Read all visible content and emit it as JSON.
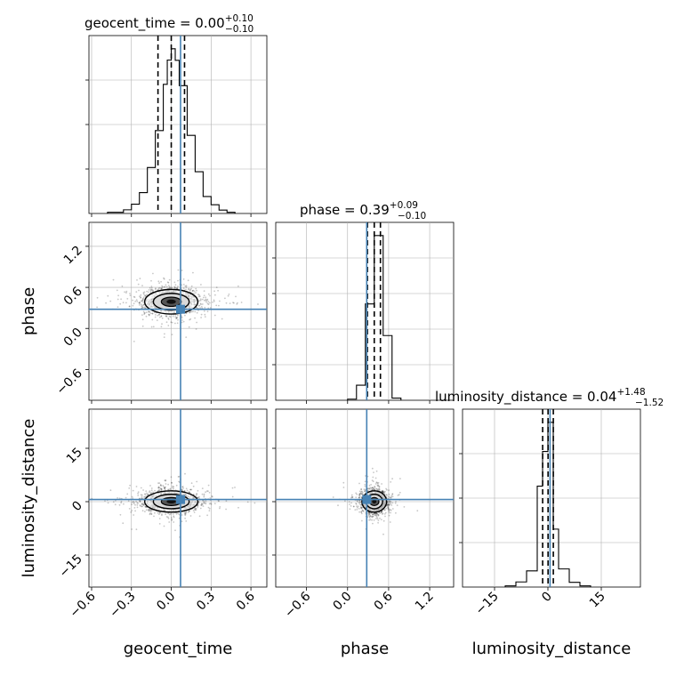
{
  "chart_data": {
    "type": "corner",
    "parameters": [
      "geocent_time",
      "phase",
      "luminosity_distance"
    ],
    "injection": {
      "geocent_time": 0.07,
      "phase": 0.28,
      "luminosity_distance": 0.6
    },
    "colors": {
      "injection": "#4682b4",
      "hist": "#000000",
      "grid": "#b0b0b0"
    },
    "panels": {
      "geocent_time": {
        "title_prefix": "geocent_time = 0.00",
        "title_plus": "+0.10",
        "title_minus": "−0.10",
        "quantiles": [
          -0.1,
          0.0,
          0.1
        ],
        "range": [
          -0.62,
          0.72
        ],
        "hist_bins": [
          {
            "x0": -0.48,
            "x1": -0.36,
            "value": 0.4
          },
          {
            "x0": -0.36,
            "x1": -0.3,
            "value": 1.3
          },
          {
            "x0": -0.3,
            "x1": -0.24,
            "value": 3.3
          },
          {
            "x0": -0.24,
            "x1": -0.18,
            "value": 7.4
          },
          {
            "x0": -0.18,
            "x1": -0.12,
            "value": 16.3
          },
          {
            "x0": -0.12,
            "x1": -0.06,
            "value": 29.4
          },
          {
            "x0": -0.06,
            "x1": -0.03,
            "value": 45.8
          },
          {
            "x0": -0.03,
            "x1": 0.0,
            "value": 54.4
          },
          {
            "x0": 0.0,
            "x1": 0.03,
            "value": 58.4
          },
          {
            "x0": 0.03,
            "x1": 0.06,
            "value": 54.3
          },
          {
            "x0": 0.06,
            "x1": 0.12,
            "value": 45.3
          },
          {
            "x0": 0.12,
            "x1": 0.18,
            "value": 27.7
          },
          {
            "x0": 0.18,
            "x1": 0.24,
            "value": 14.8
          },
          {
            "x0": 0.24,
            "x1": 0.3,
            "value": 6.0
          },
          {
            "x0": 0.3,
            "x1": 0.36,
            "value": 3.1
          },
          {
            "x0": 0.36,
            "x1": 0.42,
            "value": 1.2
          },
          {
            "x0": 0.42,
            "x1": 0.48,
            "value": 0.4
          }
        ]
      },
      "phase": {
        "title_prefix": "phase = 0.39",
        "title_plus": "+0.09",
        "title_minus": "−0.10",
        "quantiles": [
          0.29,
          0.39,
          0.48
        ],
        "range": [
          -1.05,
          1.55
        ],
        "hist_bins": [
          {
            "x0": 0.0,
            "x1": 0.13,
            "value": 0.3
          },
          {
            "x0": 0.13,
            "x1": 0.26,
            "value": 4.1
          },
          {
            "x0": 0.26,
            "x1": 0.39,
            "value": 26.2
          },
          {
            "x0": 0.39,
            "x1": 0.52,
            "value": 44.8
          },
          {
            "x0": 0.52,
            "x1": 0.65,
            "value": 17.6
          },
          {
            "x0": 0.65,
            "x1": 0.78,
            "value": 0.6
          }
        ]
      },
      "luminosity_distance": {
        "title_prefix": "luminosity_distance = 0.04",
        "title_plus": "+1.48",
        "title_minus": "−1.52",
        "quantiles": [
          -1.48,
          0.04,
          1.52
        ],
        "range": [
          -24.0,
          26.0
        ],
        "hist_bins": [
          {
            "x0": -12,
            "x1": -9,
            "value": 0.3
          },
          {
            "x0": -9,
            "x1": -6,
            "value": 1.3
          },
          {
            "x0": -6,
            "x1": -3,
            "value": 4.1
          },
          {
            "x0": -3,
            "x1": -1.5,
            "value": 25.6
          },
          {
            "x0": -1.5,
            "x1": 0,
            "value": 34.4
          },
          {
            "x0": 0,
            "x1": 1.5,
            "value": 41.8
          },
          {
            "x0": 1.5,
            "x1": 3,
            "value": 14.7
          },
          {
            "x0": 3,
            "x1": 6,
            "value": 4.6
          },
          {
            "x0": 6,
            "x1": 9,
            "value": 1.2
          },
          {
            "x0": 9,
            "x1": 12,
            "value": 0.3
          }
        ]
      }
    },
    "joint": {
      "phase_vs_geocent_time": {
        "x": "geocent_time",
        "y": "phase",
        "center": [
          0.0,
          0.39
        ],
        "sigma": [
          0.1,
          0.09
        ]
      },
      "luminosity_distance_vs_geocent_time": {
        "x": "geocent_time",
        "y": "luminosity_distance",
        "center": [
          0.0,
          0.04
        ],
        "sigma": [
          0.1,
          1.5
        ]
      },
      "luminosity_distance_vs_phase": {
        "x": "phase",
        "y": "luminosity_distance",
        "center": [
          0.39,
          0.04
        ],
        "sigma": [
          0.09,
          1.5
        ]
      }
    },
    "axes": {
      "geocent_time": {
        "label": "geocent_time",
        "range": [
          -0.62,
          0.72
        ],
        "ticks": [
          -0.6,
          -0.3,
          0.0,
          0.3,
          0.6
        ],
        "tick_labels": [
          "−0.6",
          "−0.3",
          "0.0",
          "0.3",
          "0.6"
        ]
      },
      "phase_x": {
        "label": "phase",
        "range": [
          -1.05,
          1.55
        ],
        "ticks": [
          -0.6,
          0.0,
          0.6,
          1.2
        ],
        "tick_labels": [
          "−0.6",
          "0.0",
          "0.6",
          "1.2"
        ]
      },
      "phase_y": {
        "label": "phase",
        "range": [
          -1.05,
          1.55
        ],
        "ticks": [
          -0.6,
          0.0,
          0.6,
          1.2
        ],
        "tick_labels": [
          "−0.6",
          "0.0",
          "0.6",
          "1.2"
        ]
      },
      "luminosity_distance_x": {
        "label": "luminosity_distance",
        "range": [
          -24,
          26
        ],
        "ticks": [
          -15,
          0,
          15
        ],
        "tick_labels": [
          "−15",
          "0",
          "15"
        ]
      },
      "luminosity_distance_y": {
        "label": "luminosity_distance",
        "range": [
          -24,
          26
        ],
        "ticks": [
          -15,
          0,
          15
        ],
        "tick_labels": [
          "−15",
          "0",
          "15"
        ]
      }
    },
    "grid": true
  }
}
